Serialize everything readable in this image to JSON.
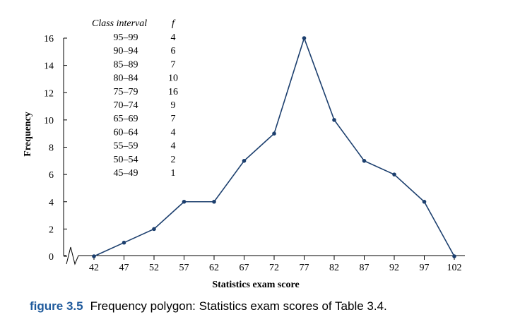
{
  "chart_data": {
    "type": "line",
    "title": "",
    "xlabel": "Statistics exam score",
    "ylabel": "Frequency",
    "x": [
      42,
      47,
      52,
      57,
      62,
      67,
      72,
      77,
      82,
      87,
      92,
      97,
      102
    ],
    "series": [
      {
        "values": [
          0,
          1,
          2,
          4,
          4,
          7,
          9,
          16,
          10,
          7,
          6,
          4,
          0
        ]
      }
    ],
    "x_ticks": [
      "42",
      "47",
      "52",
      "57",
      "62",
      "67",
      "72",
      "77",
      "82",
      "87",
      "92",
      "97",
      "102"
    ],
    "y_ticks": [
      "0",
      "2",
      "4",
      "6",
      "8",
      "10",
      "12",
      "14",
      "16"
    ],
    "ylim": [
      0,
      16
    ],
    "grid": false,
    "axis_break": true,
    "line_color": "#1c3f6e",
    "inset_table": {
      "headers": [
        "Class interval",
        "f"
      ],
      "rows": [
        [
          "95–99",
          "4"
        ],
        [
          "90–94",
          "6"
        ],
        [
          "85–89",
          "7"
        ],
        [
          "80–84",
          "10"
        ],
        [
          "75–79",
          "16"
        ],
        [
          "70–74",
          "9"
        ],
        [
          "65–69",
          "7"
        ],
        [
          "60–64",
          "4"
        ],
        [
          "55–59",
          "4"
        ],
        [
          "50–54",
          "2"
        ],
        [
          "45–49",
          "1"
        ]
      ]
    }
  },
  "caption": {
    "label": "figure 3.5",
    "text": "Frequency polygon: Statistics exam scores of Table 3.4.",
    "label_color": "#1f5a9c"
  }
}
